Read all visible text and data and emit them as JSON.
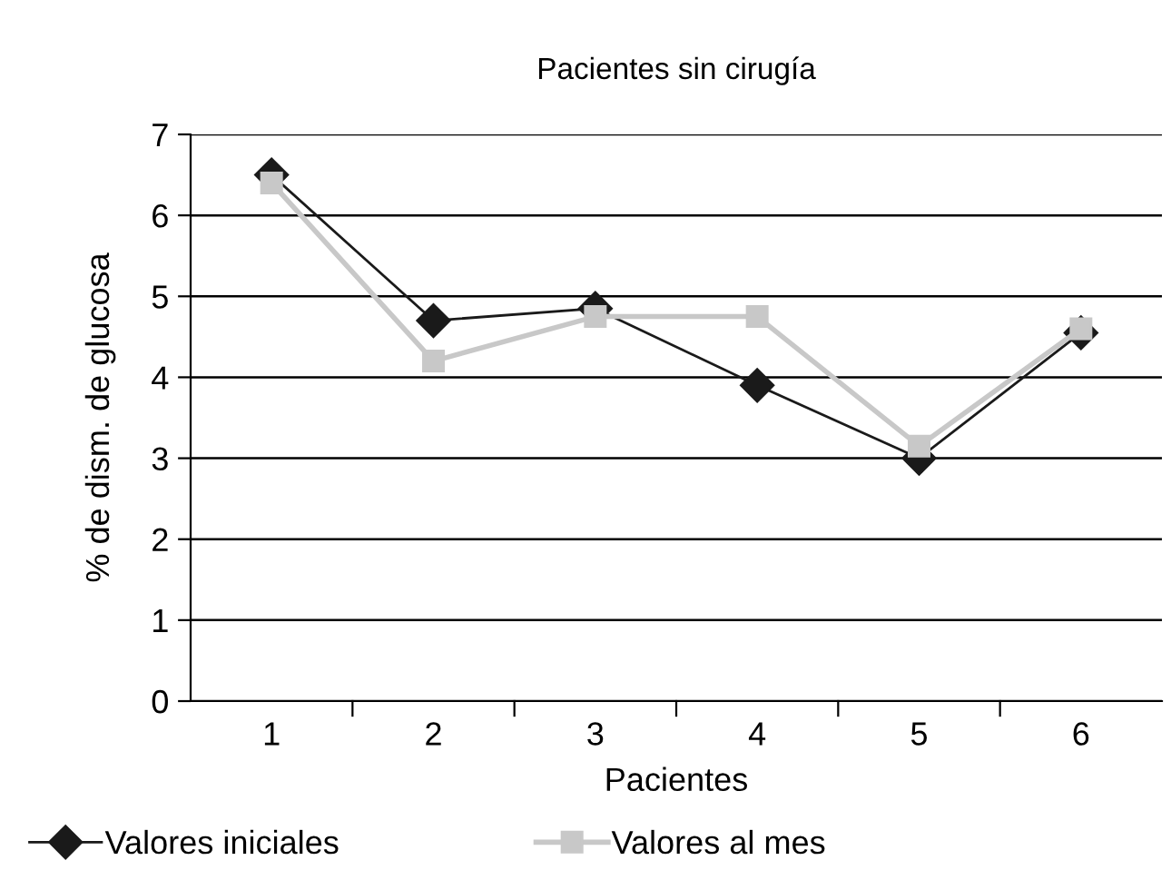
{
  "chart_data": {
    "type": "line",
    "title": "Pacientes sin cirugía",
    "xlabel": "Pacientes",
    "ylabel": "% de dism. de glucosa",
    "categories": [
      "1",
      "2",
      "3",
      "4",
      "5",
      "6"
    ],
    "series": [
      {
        "name": "Valores iniciales",
        "color": "#1a1a1a",
        "marker": "diamond",
        "values": [
          6.5,
          4.7,
          4.85,
          3.9,
          3.0,
          4.55
        ]
      },
      {
        "name": "Valores al mes",
        "color": "#c8c8c8",
        "marker": "square",
        "values": [
          6.4,
          4.2,
          4.75,
          4.75,
          3.15,
          4.6
        ]
      }
    ],
    "ylim": [
      0,
      7
    ],
    "yticks": [
      0,
      1,
      2,
      3,
      4,
      5,
      6,
      7
    ],
    "grid": "y",
    "legend": "bottom"
  }
}
